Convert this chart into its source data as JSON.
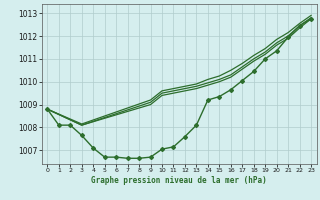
{
  "title": "Graphe pression niveau de la mer (hPa)",
  "background_color": "#d5eeee",
  "grid_color": "#b0cccc",
  "line_color": "#2d6e2d",
  "xlim": [
    -0.5,
    23.5
  ],
  "ylim": [
    1006.4,
    1013.4
  ],
  "yticks": [
    1007,
    1008,
    1009,
    1010,
    1011,
    1012,
    1013
  ],
  "xticks": [
    0,
    1,
    2,
    3,
    4,
    5,
    6,
    7,
    8,
    9,
    10,
    11,
    12,
    13,
    14,
    15,
    16,
    17,
    18,
    19,
    20,
    21,
    22,
    23
  ],
  "series": [
    {
      "x": [
        0,
        1,
        2,
        3,
        4,
        5,
        6,
        7,
        8,
        9,
        10,
        11,
        12,
        13,
        14,
        15,
        16,
        17,
        18,
        19,
        20,
        21,
        22,
        23
      ],
      "y": [
        1008.8,
        1008.1,
        1008.1,
        1007.65,
        1007.1,
        1006.7,
        1006.7,
        1006.65,
        1006.65,
        1006.7,
        1007.05,
        1007.15,
        1007.6,
        1008.1,
        1009.2,
        1009.35,
        1009.65,
        1010.05,
        1010.45,
        1011.0,
        1011.35,
        1011.95,
        1012.45,
        1012.75
      ],
      "marker": "D",
      "markersize": 2.0,
      "linewidth": 1.0
    },
    {
      "x": [
        0,
        3,
        9,
        10,
        11,
        12,
        13,
        14,
        15,
        16,
        17,
        18,
        19,
        20,
        21,
        22,
        23
      ],
      "y": [
        1008.8,
        1008.1,
        1009.0,
        1009.4,
        1009.5,
        1009.6,
        1009.7,
        1009.85,
        1010.0,
        1010.2,
        1010.55,
        1010.9,
        1011.2,
        1011.6,
        1011.9,
        1012.35,
        1012.75
      ],
      "marker": null,
      "markersize": 0,
      "linewidth": 0.9
    },
    {
      "x": [
        0,
        3,
        9,
        10,
        11,
        12,
        13,
        14,
        15,
        16,
        17,
        18,
        19,
        20,
        21,
        22,
        23
      ],
      "y": [
        1008.8,
        1008.1,
        1009.1,
        1009.5,
        1009.6,
        1009.7,
        1009.8,
        1009.95,
        1010.1,
        1010.3,
        1010.65,
        1011.0,
        1011.3,
        1011.7,
        1012.0,
        1012.45,
        1012.8
      ],
      "marker": null,
      "markersize": 0,
      "linewidth": 0.9
    },
    {
      "x": [
        0,
        3,
        9,
        10,
        11,
        12,
        13,
        14,
        15,
        16,
        17,
        18,
        19,
        20,
        21,
        22,
        23
      ],
      "y": [
        1008.8,
        1008.15,
        1009.2,
        1009.6,
        1009.7,
        1009.8,
        1009.9,
        1010.1,
        1010.25,
        1010.5,
        1010.8,
        1011.15,
        1011.45,
        1011.85,
        1012.15,
        1012.55,
        1012.9
      ],
      "marker": null,
      "markersize": 0,
      "linewidth": 0.9
    }
  ]
}
